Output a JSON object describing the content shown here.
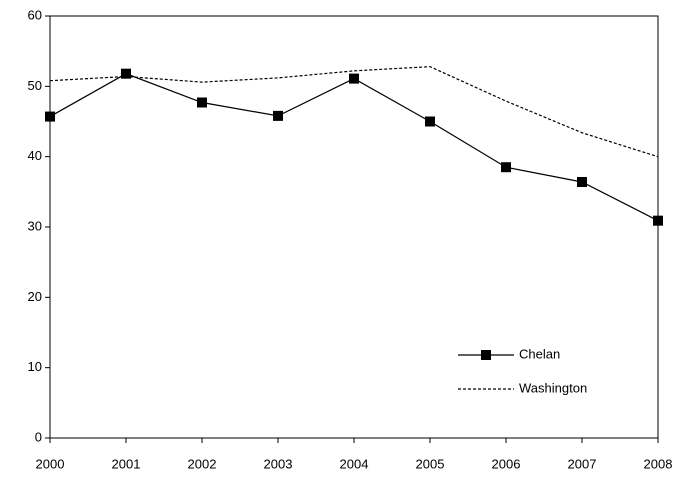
{
  "chart_data": {
    "type": "line",
    "x": [
      2000,
      2001,
      2002,
      2003,
      2004,
      2005,
      2006,
      2007,
      2008
    ],
    "xlim": [
      2000,
      2008
    ],
    "xticks": [
      2000,
      2001,
      2002,
      2003,
      2004,
      2005,
      2006,
      2007,
      2008
    ],
    "ylim": [
      0,
      60
    ],
    "yticks": [
      0,
      10,
      20,
      30,
      40,
      50,
      60
    ],
    "grid": false,
    "legend": "lower right",
    "series": [
      {
        "name": "Chelan",
        "color": "#000000",
        "style": "solid",
        "marker": "square",
        "values": [
          45.7,
          51.8,
          47.7,
          45.8,
          51.1,
          45.0,
          38.5,
          36.4,
          30.9
        ]
      },
      {
        "name": "Washington",
        "color": "#000000",
        "style": "dashed",
        "marker": "none",
        "values": [
          50.8,
          51.4,
          50.6,
          51.2,
          52.2,
          52.8,
          47.9,
          43.4,
          40.0
        ]
      }
    ]
  }
}
